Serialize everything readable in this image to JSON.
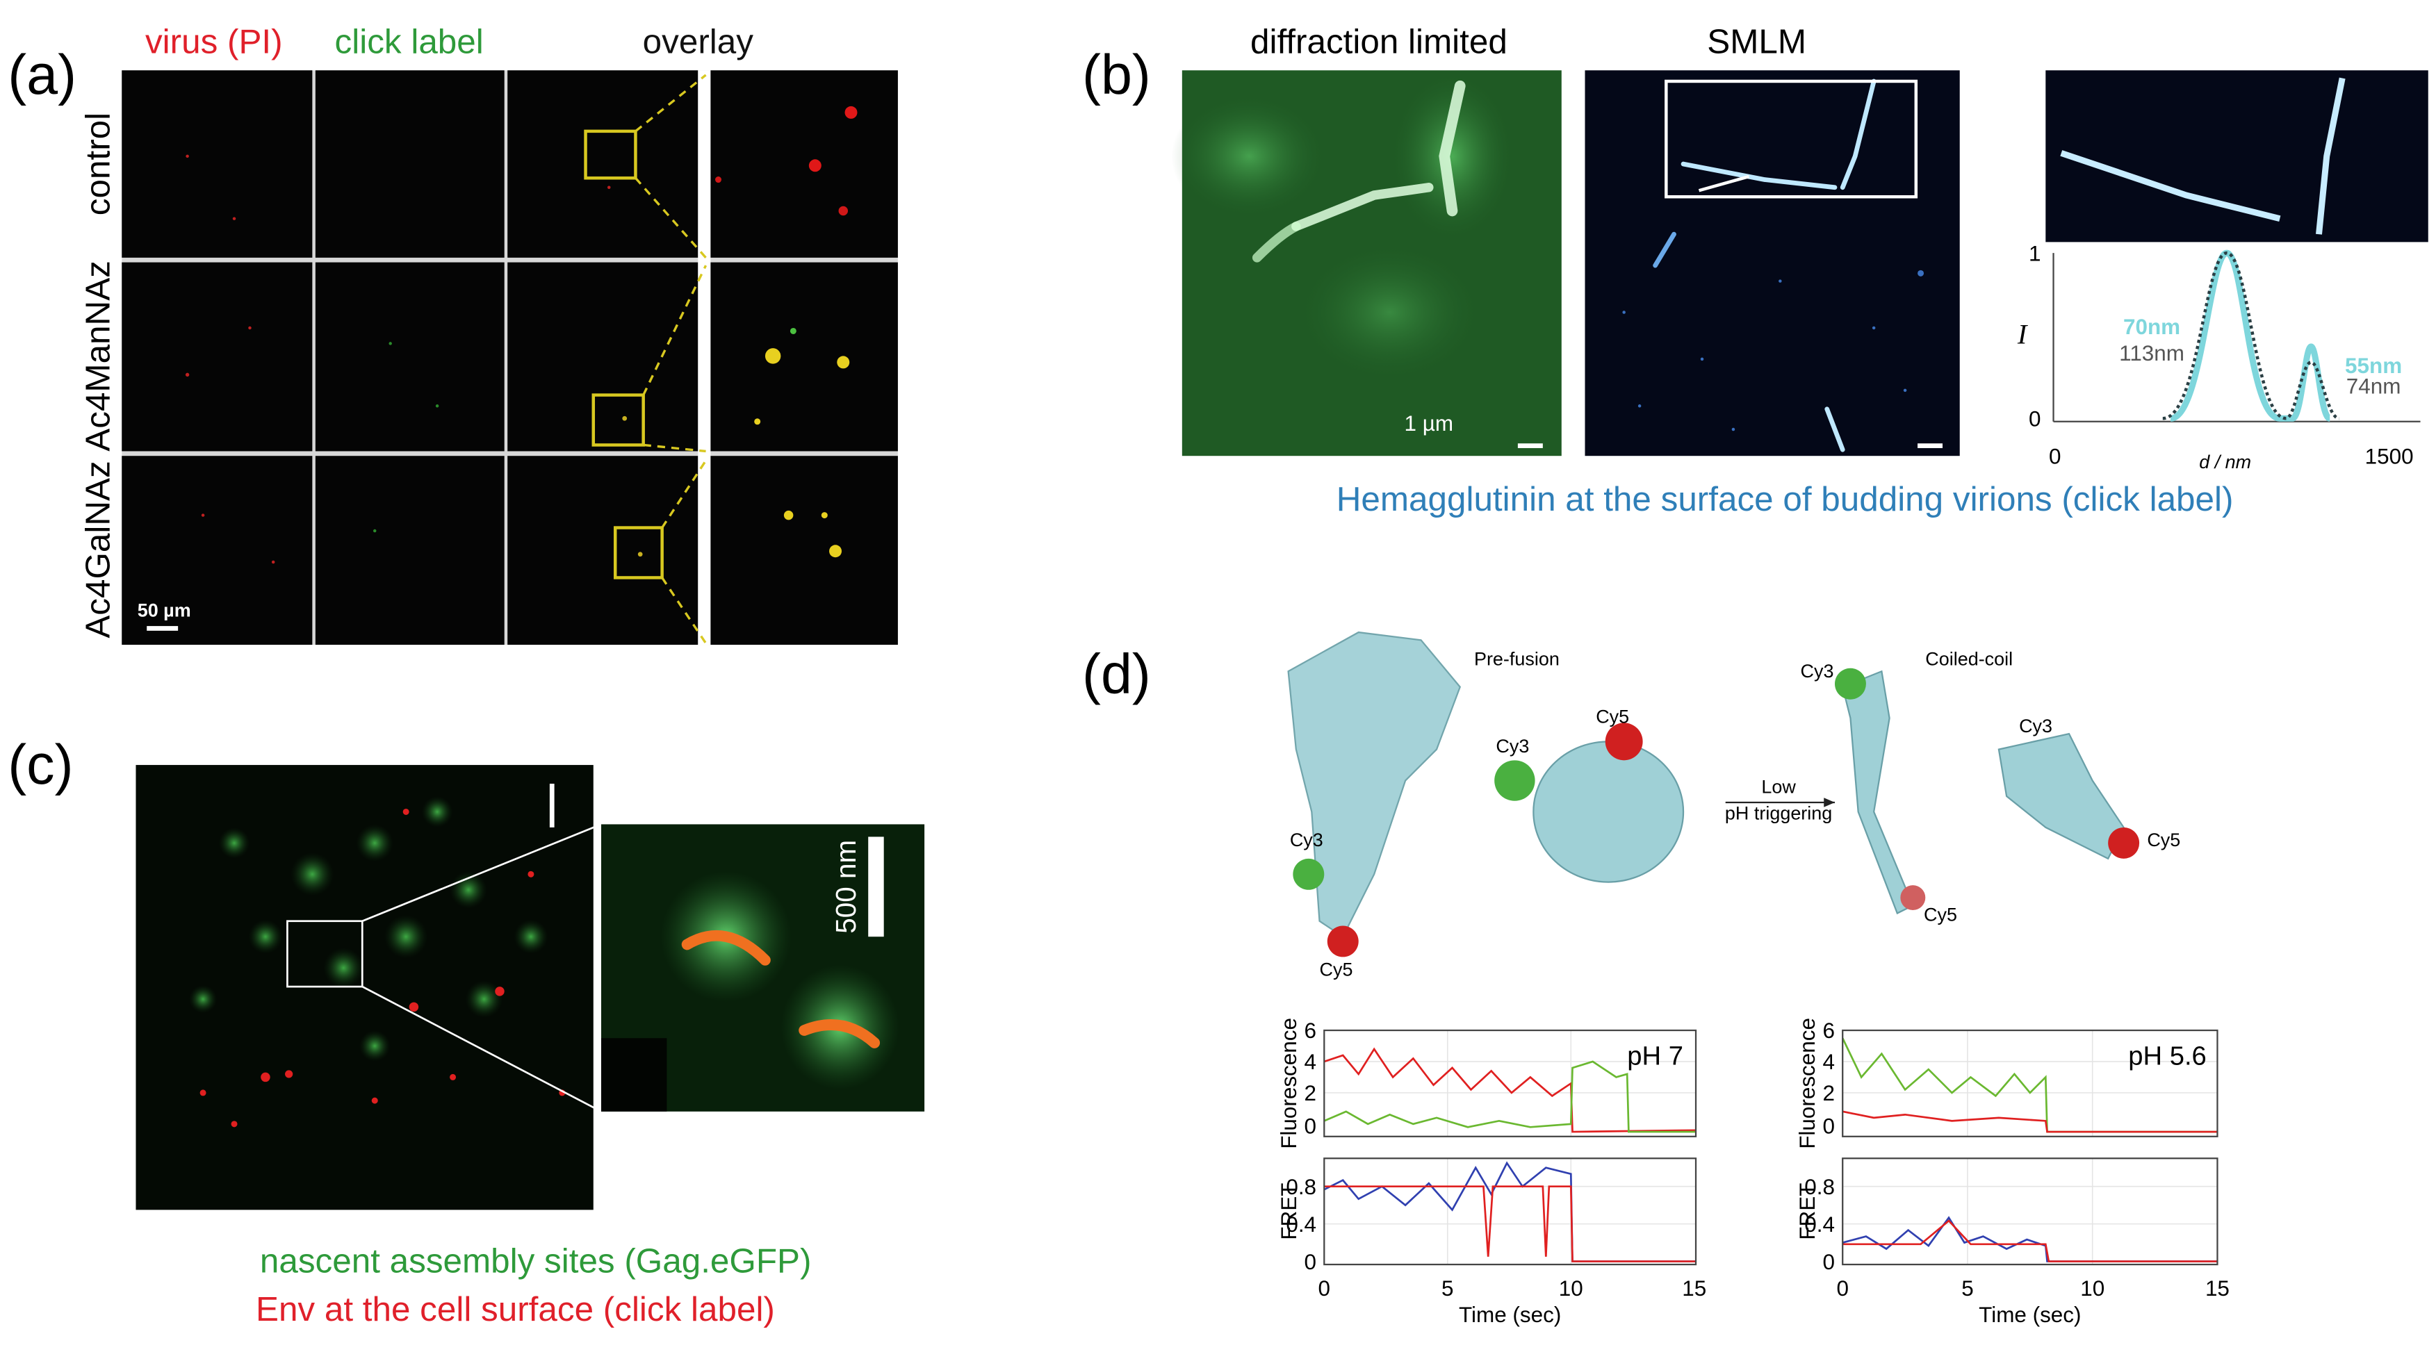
{
  "panel_a": {
    "label": "(a)",
    "columns": [
      "virus (PI)",
      "click label",
      "overlay"
    ],
    "rows": [
      "control",
      "Ac4ManNAz",
      "Ac4GalNAz"
    ],
    "scale_bar": "50 µm"
  },
  "panel_b": {
    "label": "(b)",
    "titles": [
      "diffraction limited",
      "SMLM"
    ],
    "scale_bar": "1 µm",
    "plot": {
      "y_label": "I",
      "x_label": "d / nm",
      "yticks": [
        "0",
        "1"
      ],
      "xticks": [
        "0",
        "1500"
      ],
      "annotations": [
        "70nm",
        "113nm",
        "55nm",
        "74nm"
      ]
    },
    "caption": "Hemagglutinin at the surface of budding virions (click label)"
  },
  "panel_c": {
    "label": "(c)",
    "scale_bar": "500 nm",
    "captions": [
      "nascent assembly sites (Gag.eGFP)",
      "Env at the cell surface (click label)"
    ]
  },
  "panel_d": {
    "label": "(d)",
    "structures": [
      "Pre-fusion",
      "Coiled-coil"
    ],
    "dyes": [
      "Cy3",
      "Cy5",
      "Cy3",
      "Cy5",
      "Cy3",
      "Cy3",
      "Cy5",
      "Cy5"
    ],
    "arrow_text": [
      "Low",
      "pH triggering"
    ],
    "conditions": [
      "pH 7",
      "pH 5.6"
    ],
    "fluorescence_label": "Fluorescence",
    "fret_label": "FRET",
    "fluorescence_ticks": [
      "0",
      "2",
      "4",
      "6"
    ],
    "fret_ticks": [
      "0",
      "0.4",
      "0.8"
    ],
    "time_ticks": [
      "0",
      "5",
      "10",
      "15"
    ],
    "time_label": "Time (sec)"
  }
}
